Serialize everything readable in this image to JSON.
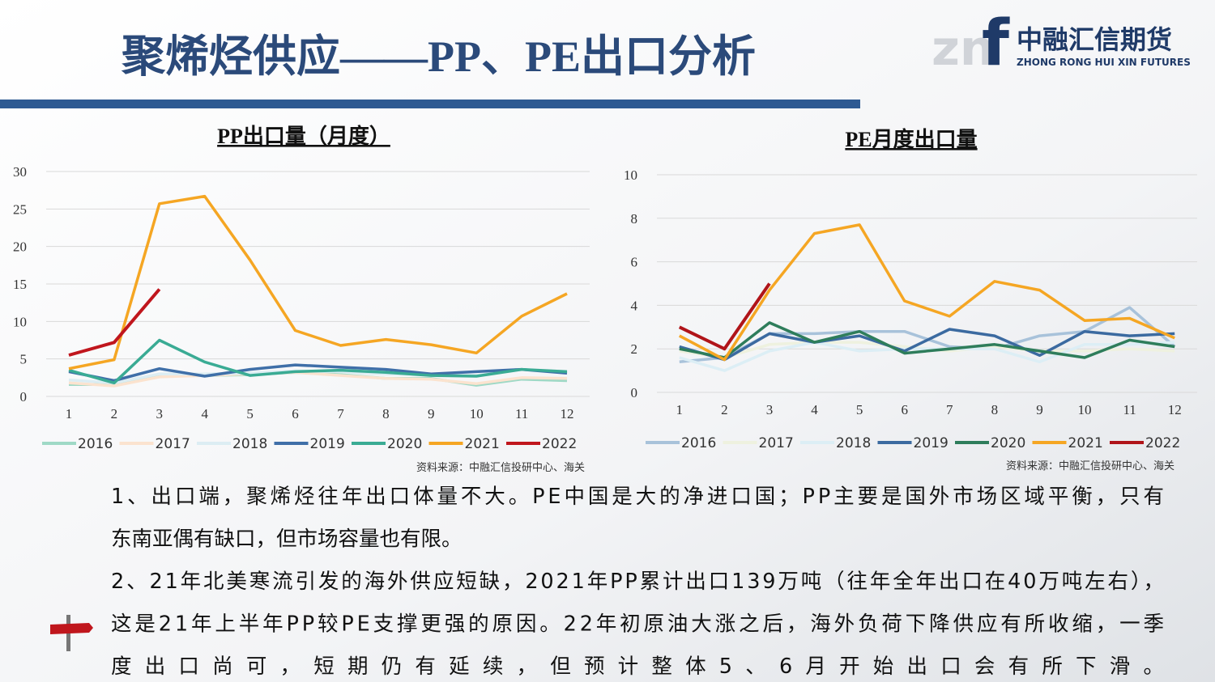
{
  "header": {
    "title": "聚烯烃供应——PP、PE出口分析",
    "logo_cn": "中融汇信期货",
    "logo_en": "ZHONG RONG HUI XIN FUTURES",
    "logo_mark_a": "zn",
    "logo_mark_b": "f"
  },
  "chart_data": [
    {
      "type": "line",
      "title": "PP出口量（月度）",
      "source": "资料来源：中融汇信投研中心、海关",
      "categories": [
        "1",
        "2",
        "3",
        "4",
        "5",
        "6",
        "7",
        "8",
        "9",
        "10",
        "11",
        "12"
      ],
      "ylim": [
        0,
        30
      ],
      "yticks": [
        0,
        5,
        10,
        15,
        20,
        25,
        30
      ],
      "grid": true,
      "series": [
        {
          "name": "2016",
          "color": "#9fd9c6",
          "values": [
            1.6,
            1.6,
            2.7,
            2.8,
            2.9,
            3.2,
            2.9,
            2.4,
            2.4,
            1.5,
            2.3,
            2.1
          ]
        },
        {
          "name": "2017",
          "color": "#fbe3cf",
          "values": [
            1.8,
            1.4,
            2.6,
            2.8,
            3.0,
            3.2,
            2.8,
            2.4,
            2.3,
            1.7,
            2.5,
            2.4
          ]
        },
        {
          "name": "2018",
          "color": "#dcedf3",
          "values": [
            2.2,
            1.8,
            3.0,
            3.0,
            3.1,
            3.4,
            3.3,
            3.0,
            2.9,
            2.8,
            3.6,
            3.2
          ]
        },
        {
          "name": "2019",
          "color": "#3f6fa8",
          "values": [
            3.3,
            2.1,
            3.7,
            2.7,
            3.6,
            4.2,
            3.9,
            3.6,
            3.0,
            3.3,
            3.6,
            3.1
          ]
        },
        {
          "name": "2020",
          "color": "#3aab94",
          "values": [
            3.5,
            1.8,
            7.5,
            4.6,
            2.8,
            3.3,
            3.5,
            3.2,
            2.8,
            2.7,
            3.6,
            3.3
          ]
        },
        {
          "name": "2021",
          "color": "#f5a623",
          "values": [
            3.7,
            4.9,
            25.7,
            26.7,
            18.2,
            8.8,
            6.8,
            7.6,
            6.9,
            5.8,
            10.7,
            13.7
          ]
        },
        {
          "name": "2022",
          "color": "#c0161d",
          "values": [
            5.5,
            7.2,
            14.3,
            null,
            null,
            null,
            null,
            null,
            null,
            null,
            null,
            null
          ]
        }
      ]
    },
    {
      "type": "line",
      "title": "PE月度出口量",
      "source": "资料来源：中融汇信投研中心、海关",
      "categories": [
        "1",
        "2",
        "3",
        "4",
        "5",
        "6",
        "7",
        "8",
        "9",
        "10",
        "11",
        "12"
      ],
      "ylim": [
        0,
        10
      ],
      "yticks": [
        0,
        2,
        4,
        6,
        8,
        10
      ],
      "grid": true,
      "series": [
        {
          "name": "2016",
          "color": "#a8c2da",
          "values": [
            1.4,
            1.6,
            2.7,
            2.7,
            2.8,
            2.8,
            2.1,
            2.0,
            2.6,
            2.8,
            3.9,
            2.1
          ]
        },
        {
          "name": "2017",
          "color": "#eef1df",
          "values": [
            1.9,
            1.6,
            2.2,
            2.3,
            2.3,
            2.1,
            1.9,
            2.1,
            1.9,
            1.9,
            2.0,
            1.9
          ]
        },
        {
          "name": "2018",
          "color": "#dceef5",
          "values": [
            1.6,
            1.0,
            1.9,
            2.3,
            1.9,
            2.0,
            2.0,
            2.0,
            1.4,
            2.2,
            2.2,
            2.3
          ]
        },
        {
          "name": "2019",
          "color": "#3b6aa0",
          "values": [
            2.1,
            1.5,
            2.7,
            2.3,
            2.6,
            1.9,
            2.9,
            2.6,
            1.7,
            2.8,
            2.6,
            2.7
          ]
        },
        {
          "name": "2020",
          "color": "#2e7d5b",
          "values": [
            2.0,
            1.6,
            3.2,
            2.3,
            2.8,
            1.8,
            2.0,
            2.2,
            1.9,
            1.6,
            2.4,
            2.1
          ]
        },
        {
          "name": "2021",
          "color": "#f5a623",
          "values": [
            2.6,
            1.5,
            4.7,
            7.3,
            7.7,
            4.2,
            3.5,
            5.1,
            4.7,
            3.3,
            3.4,
            2.5
          ]
        },
        {
          "name": "2022",
          "color": "#b01419",
          "values": [
            3.0,
            2.0,
            5.0,
            null,
            null,
            null,
            null,
            null,
            null,
            null,
            null,
            null
          ]
        }
      ]
    }
  ],
  "paragraphs": [
    "1、出口端，聚烯烃往年出口体量不大。PE中国是大的净进口国；PP主要是国外市场区域平衡，只有",
    "东南亚偶有缺口，但市场容量也有限。",
    "2、21年北美寒流引发的海外供应短缺，2021年PP累计出口139万吨（往年全年出口在40万吨左右），",
    "这是21年上半年PP较PE支撑更强的原因。22年初原油大涨之后，海外负荷下降供应有所收缩，一季",
    "度出口尚可，短期仍有延续，但预计整体5、6月开始出口会有所下滑。"
  ]
}
